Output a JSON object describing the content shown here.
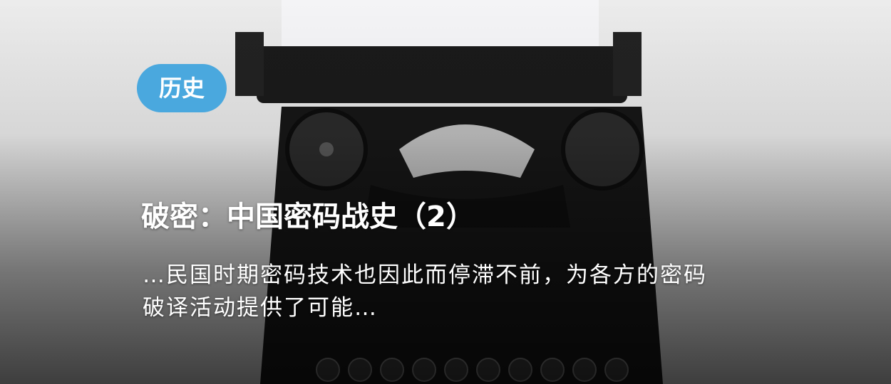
{
  "card": {
    "tag": "历史",
    "title": "破密：中国密码战史（2）",
    "excerpt": [
      "…民国时期密码技术也因此而停滞不前，为各方的密码",
      "破译活动提供了可能…"
    ]
  }
}
